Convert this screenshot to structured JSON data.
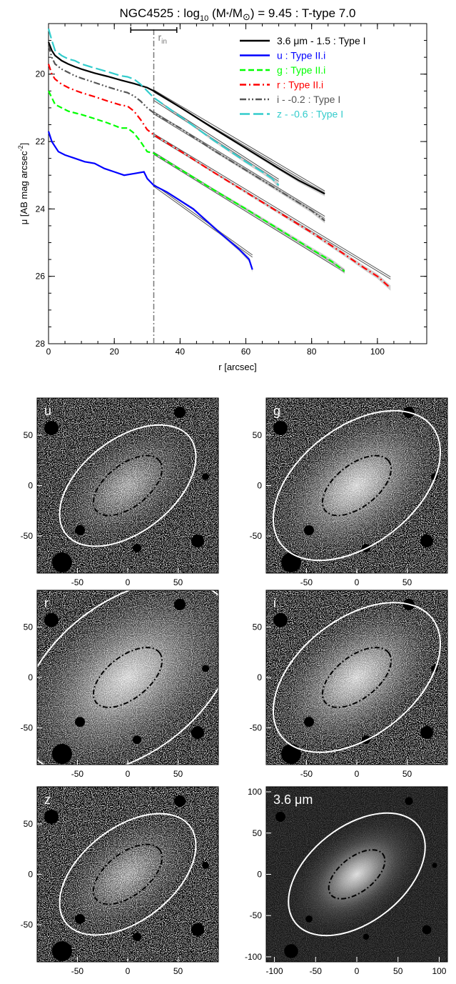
{
  "profile": {
    "title": "NGC4525 : log",
    "title_sub": "10",
    "title_mid": " (M",
    "title_star": "*",
    "title_slash": "/M",
    "title_sun": "⊙",
    "title_end": ") = 9.45 : T-type 7.0",
    "r_in_label": "r",
    "r_in_sub": "in",
    "xlabel": "r [arcsec]",
    "ylabel_main": "μ [AB mag arcsec",
    "ylabel_sup": "-2",
    "ylabel_end": "]"
  },
  "chart_data": [
    {
      "type": "line",
      "title": "NGC4525 : log10 (M*/M⊙) = 9.45 : T-type 7.0",
      "xlabel": "r [arcsec]",
      "ylabel": "μ [AB mag arcsec-2]",
      "xlim": [
        0,
        115
      ],
      "ylim": [
        28,
        18.5
      ],
      "y_inverted": true,
      "xticks": [
        0,
        20,
        40,
        60,
        80,
        100
      ],
      "yticks": [
        20,
        22,
        24,
        26,
        28
      ],
      "r_in": 32,
      "r_in_errorbar": [
        25,
        39
      ],
      "legend_position": "top-right",
      "series": [
        {
          "name": "3.6 μm - 1.5 : Type I",
          "color": "#000000",
          "dash": "solid",
          "x": [
            0,
            1,
            2,
            4,
            6,
            8,
            10,
            14,
            18,
            22,
            26,
            30,
            32,
            40,
            50,
            60,
            70,
            76,
            80,
            84
          ],
          "y": [
            19.05,
            19.3,
            19.45,
            19.6,
            19.7,
            19.78,
            19.85,
            19.97,
            20.07,
            20.18,
            20.28,
            20.4,
            20.5,
            20.98,
            21.6,
            22.2,
            22.8,
            23.15,
            23.35,
            23.55
          ],
          "fit": {
            "x": [
              32,
              84
            ],
            "y": [
              20.5,
              23.5
            ]
          }
        },
        {
          "name": "u : Type II.i",
          "color": "#0000ff",
          "dash": "solid",
          "x": [
            0,
            1,
            3,
            5,
            8,
            11,
            14,
            17,
            20,
            23,
            26,
            29,
            30,
            32,
            36,
            40,
            44,
            48,
            52,
            55,
            58,
            60,
            61,
            62
          ],
          "y": [
            21.7,
            22.0,
            22.3,
            22.4,
            22.5,
            22.6,
            22.65,
            22.8,
            22.9,
            23.0,
            22.95,
            22.9,
            23.1,
            23.3,
            23.5,
            23.75,
            24.0,
            24.35,
            24.7,
            24.95,
            25.2,
            25.4,
            25.5,
            25.8
          ],
          "fit": {
            "x": [
              32,
              62
            ],
            "y": [
              23.3,
              25.4
            ]
          }
        },
        {
          "name": "g : Type II.i",
          "color": "#00ff00",
          "dash": "dashed",
          "x": [
            0,
            1,
            2,
            4,
            6,
            8,
            10,
            14,
            18,
            22,
            24,
            26,
            28,
            30,
            32,
            40,
            50,
            60,
            70,
            80,
            86,
            90
          ],
          "y": [
            20.5,
            20.7,
            20.9,
            21.0,
            21.1,
            21.15,
            21.2,
            21.32,
            21.45,
            21.6,
            21.6,
            21.75,
            22.0,
            22.3,
            22.35,
            22.82,
            23.42,
            24.0,
            24.6,
            25.2,
            25.55,
            25.85
          ],
          "fit": {
            "x": [
              32,
              90
            ],
            "y": [
              22.35,
              25.85
            ]
          }
        },
        {
          "name": "r : Type II.i",
          "color": "#ff0000",
          "dash": "dashdot",
          "x": [
            0,
            1,
            2,
            4,
            6,
            8,
            10,
            14,
            18,
            22,
            24,
            26,
            28,
            30,
            32,
            40,
            50,
            60,
            70,
            80,
            90,
            96,
            100,
            104
          ],
          "y": [
            19.7,
            20.0,
            20.15,
            20.3,
            20.4,
            20.48,
            20.55,
            20.67,
            20.8,
            20.92,
            20.95,
            21.1,
            21.35,
            21.65,
            21.8,
            22.28,
            22.9,
            23.5,
            24.1,
            24.7,
            25.35,
            25.75,
            26.0,
            26.35
          ],
          "fit": {
            "x": [
              32,
              104
            ],
            "y": [
              21.8,
              26.05
            ]
          }
        },
        {
          "name": "i - -0.2 : Type I",
          "color": "#555555",
          "dash": "dashdotdot",
          "x": [
            0,
            1,
            2,
            4,
            6,
            8,
            10,
            14,
            18,
            22,
            24,
            26,
            28,
            30,
            32,
            40,
            50,
            60,
            70,
            80,
            84
          ],
          "y": [
            19.15,
            19.5,
            19.7,
            19.85,
            19.95,
            20.05,
            20.12,
            20.25,
            20.38,
            20.5,
            20.55,
            20.65,
            20.8,
            21.0,
            21.15,
            21.6,
            22.25,
            22.85,
            23.45,
            24.05,
            24.35
          ],
          "fit": {
            "x": [
              32,
              84
            ],
            "y": [
              21.15,
              24.25
            ]
          }
        },
        {
          "name": "z - -0.6 : Type I",
          "color": "#33cccc",
          "dash": "longdash",
          "x": [
            0,
            1,
            2,
            4,
            6,
            8,
            10,
            14,
            18,
            22,
            24,
            26,
            28,
            30,
            32,
            40,
            50,
            60,
            65,
            68,
            70
          ],
          "y": [
            18.65,
            19.0,
            19.3,
            19.45,
            19.55,
            19.6,
            19.7,
            19.82,
            19.93,
            20.05,
            20.08,
            20.15,
            20.3,
            20.5,
            20.7,
            21.25,
            21.95,
            22.6,
            22.9,
            23.1,
            23.3
          ],
          "fit": {
            "x": [
              32,
              70
            ],
            "y": [
              20.75,
              23.15
            ]
          }
        }
      ]
    },
    {
      "type": "image",
      "panels": [
        {
          "label": "u",
          "xticks": [
            -50,
            0,
            50
          ],
          "yticks": [
            50,
            0,
            -50
          ],
          "range": 90,
          "outer": {
            "a": 78,
            "b": 46
          },
          "inner": {
            "a": 40,
            "b": 21
          }
        },
        {
          "label": "g",
          "xticks": [
            -50,
            0,
            50
          ],
          "yticks": [
            50,
            0,
            -50
          ],
          "range": 90,
          "outer": {
            "a": 95,
            "b": 58
          },
          "inner": {
            "a": 40,
            "b": 21
          }
        },
        {
          "label": "r",
          "xticks": [
            -50,
            0,
            50
          ],
          "yticks": [
            50,
            0,
            -50
          ],
          "range": 90,
          "outer": {
            "a": 122,
            "b": 75
          },
          "inner": {
            "a": 40,
            "b": 21
          }
        },
        {
          "label": "i",
          "xticks": [
            -50,
            0,
            50
          ],
          "yticks": [
            50,
            0,
            -50
          ],
          "range": 90,
          "outer": {
            "a": 95,
            "b": 58
          },
          "inner": {
            "a": 40,
            "b": 21
          }
        },
        {
          "label": "z",
          "xticks": [
            -50,
            0,
            50
          ],
          "yticks": [
            50,
            0,
            -50
          ],
          "range": 90,
          "outer": {
            "a": 78,
            "b": 46
          },
          "inner": {
            "a": 40,
            "b": 21
          }
        },
        {
          "label": "3.6 μm",
          "xticks": [
            -100,
            -50,
            0,
            50,
            100
          ],
          "yticks": [
            100,
            50,
            0,
            -50,
            -100
          ],
          "range": 110,
          "outer": {
            "a": 95,
            "b": 58
          },
          "inner": {
            "a": 40,
            "b": 21
          }
        }
      ],
      "position_angle_deg": -38
    }
  ]
}
